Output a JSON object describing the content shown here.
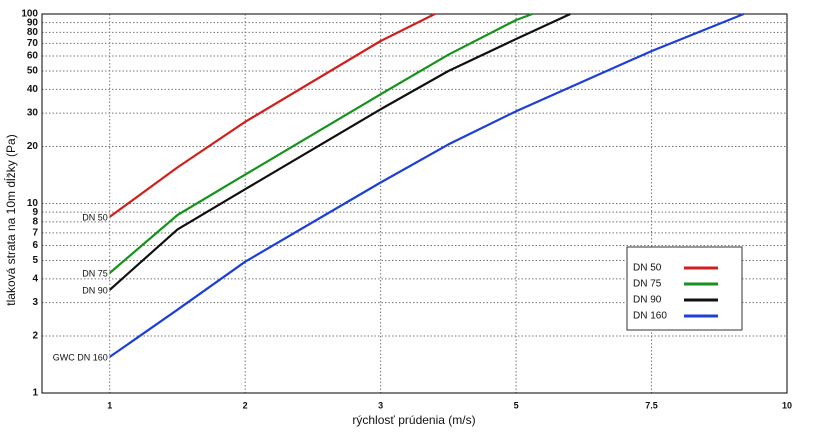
{
  "chart_data": {
    "type": "line",
    "y_label": "tlaková strata na 10m dĺžky (Pa)",
    "x_label": "rýchlosť prúdenia (m/s)",
    "xlim": [
      0.5,
      10
    ],
    "xticks": [
      1,
      2,
      3,
      5,
      7.5,
      10
    ],
    "ylim": [
      1,
      100
    ],
    "yticks": [
      1,
      2,
      3,
      4,
      5,
      6,
      7,
      8,
      9,
      10,
      20,
      30,
      40,
      50,
      60,
      70,
      80,
      90,
      100
    ],
    "y_log": true,
    "grid": true,
    "series": [
      {
        "name": "DN 50",
        "start_label": "DN 50",
        "color": "#d0201c",
        "x": [
          1,
          1.5,
          2,
          3,
          3.8
        ],
        "values": [
          8.5,
          15.5,
          27,
          72,
          100
        ]
      },
      {
        "name": "DN 75",
        "start_label": "DN 75",
        "color": "#16931c",
        "x": [
          1,
          1.5,
          2,
          3,
          4,
          5,
          5.3
        ],
        "values": [
          4.3,
          8.7,
          14.2,
          37.7,
          61,
          93,
          100
        ]
      },
      {
        "name": "DN 90",
        "start_label": "DN 90",
        "color": "#111111",
        "x": [
          1,
          1.5,
          2,
          3,
          4,
          5,
          6
        ],
        "values": [
          3.5,
          7.3,
          11.9,
          31.4,
          50,
          73.8,
          100
        ]
      },
      {
        "name": "DN 160",
        "start_label": "GWC DN 160",
        "color": "#1c3fd8",
        "x": [
          1,
          1.5,
          2,
          3,
          4,
          5,
          7.5,
          9.2
        ],
        "values": [
          1.55,
          2.75,
          4.93,
          12.9,
          20.5,
          30.7,
          63.7,
          100
        ]
      }
    ]
  }
}
